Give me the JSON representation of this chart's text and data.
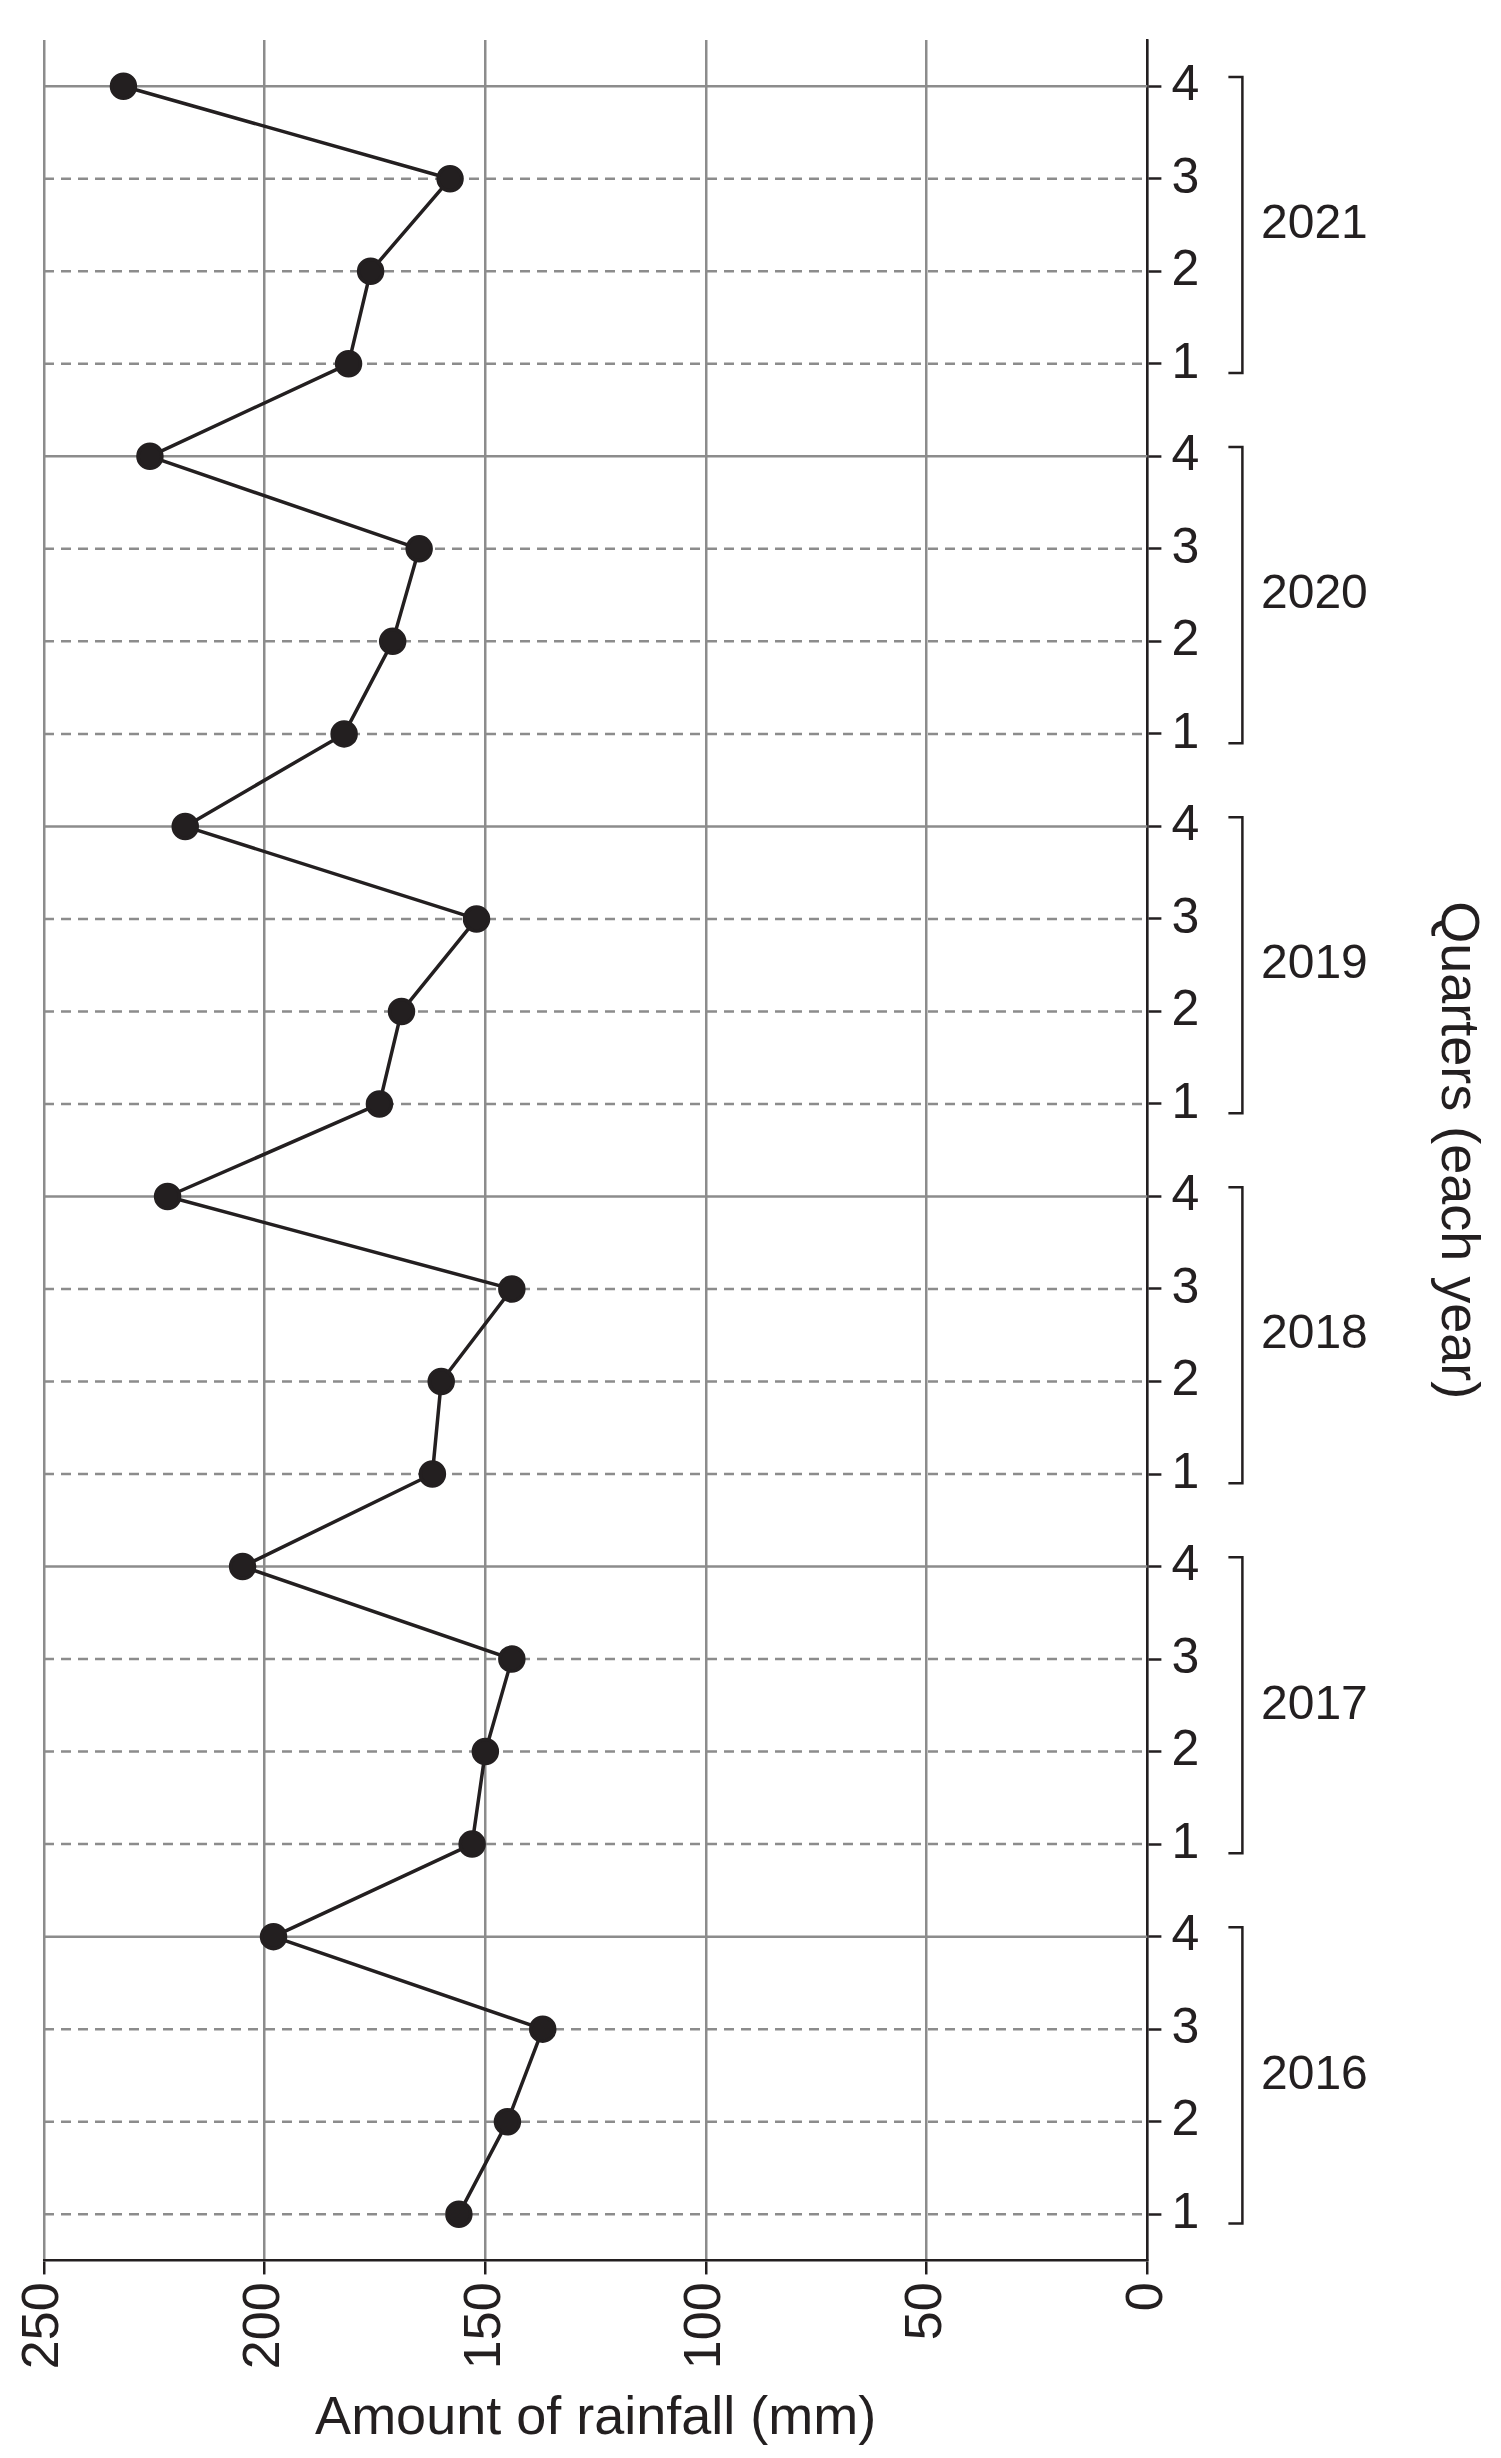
{
  "chart_data": {
    "type": "line",
    "orientation": "horizontal",
    "xlabel": "Amount of rainfall (mm)",
    "ylabel": "Quarters (each year)",
    "categories": [
      "4",
      "3",
      "2",
      "1",
      "4",
      "3",
      "2",
      "1",
      "4",
      "3",
      "2",
      "1",
      "4",
      "3",
      "2",
      "1",
      "4",
      "3",
      "2",
      "1",
      "4",
      "3",
      "2",
      "1"
    ],
    "series": [
      {
        "color": "#231f20",
        "values": [
          232,
          158,
          176,
          181,
          226,
          165,
          171,
          182,
          218,
          152,
          169,
          174,
          222,
          144,
          160,
          162,
          205,
          144,
          150,
          153,
          198,
          137,
          145,
          156
        ]
      }
    ],
    "annotations": [
      "2021",
      "2020",
      "2019",
      "2018",
      "2017",
      "2016"
    ],
    "xlim": [
      250,
      0
    ],
    "xticks": [
      250,
      200,
      150,
      100,
      50,
      0
    ],
    "grid": true,
    "legend": false,
    "marker": "circle",
    "line_style": "solid"
  }
}
